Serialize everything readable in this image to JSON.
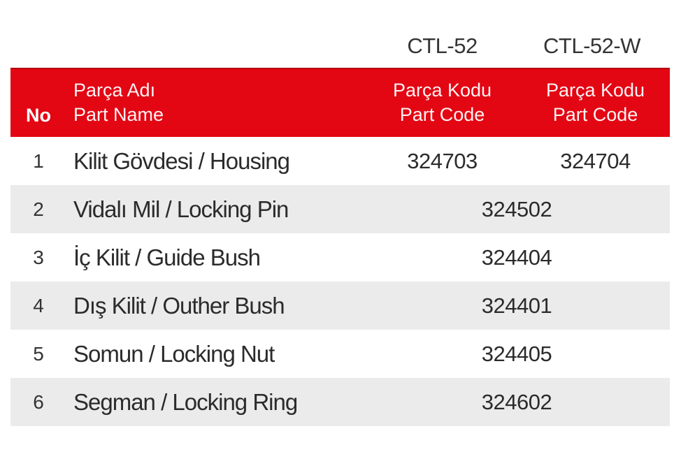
{
  "models": [
    "CTL-52",
    "CTL-52-W"
  ],
  "header": {
    "no": "No",
    "name_line1": "Parça Adı",
    "name_line2": "Part Name",
    "code1_line1": "Parça Kodu",
    "code1_line2": "Part Code",
    "code2_line1": "Parça Kodu",
    "code2_line2": "Part Code"
  },
  "rows": [
    {
      "no": "1",
      "name": "Kilit Gövdesi / Housing",
      "code_ctl52": "324703",
      "code_ctl52w": "324704"
    },
    {
      "no": "2",
      "name": "Vidalı Mil / Locking Pin",
      "code_shared": "324502"
    },
    {
      "no": "3",
      "name": "İç Kilit / Guide Bush",
      "code_shared": "324404"
    },
    {
      "no": "4",
      "name": "Dış Kilit / Outher Bush",
      "code_shared": "324401"
    },
    {
      "no": "5",
      "name": "Somun / Locking Nut",
      "code_shared": "324405"
    },
    {
      "no": "6",
      "name": "Segman / Locking Ring",
      "code_shared": "324602"
    }
  ],
  "colors": {
    "accent_red": "#e30613",
    "row_alt_gray": "#ebebeb",
    "text_dark": "#2b2b2b"
  }
}
